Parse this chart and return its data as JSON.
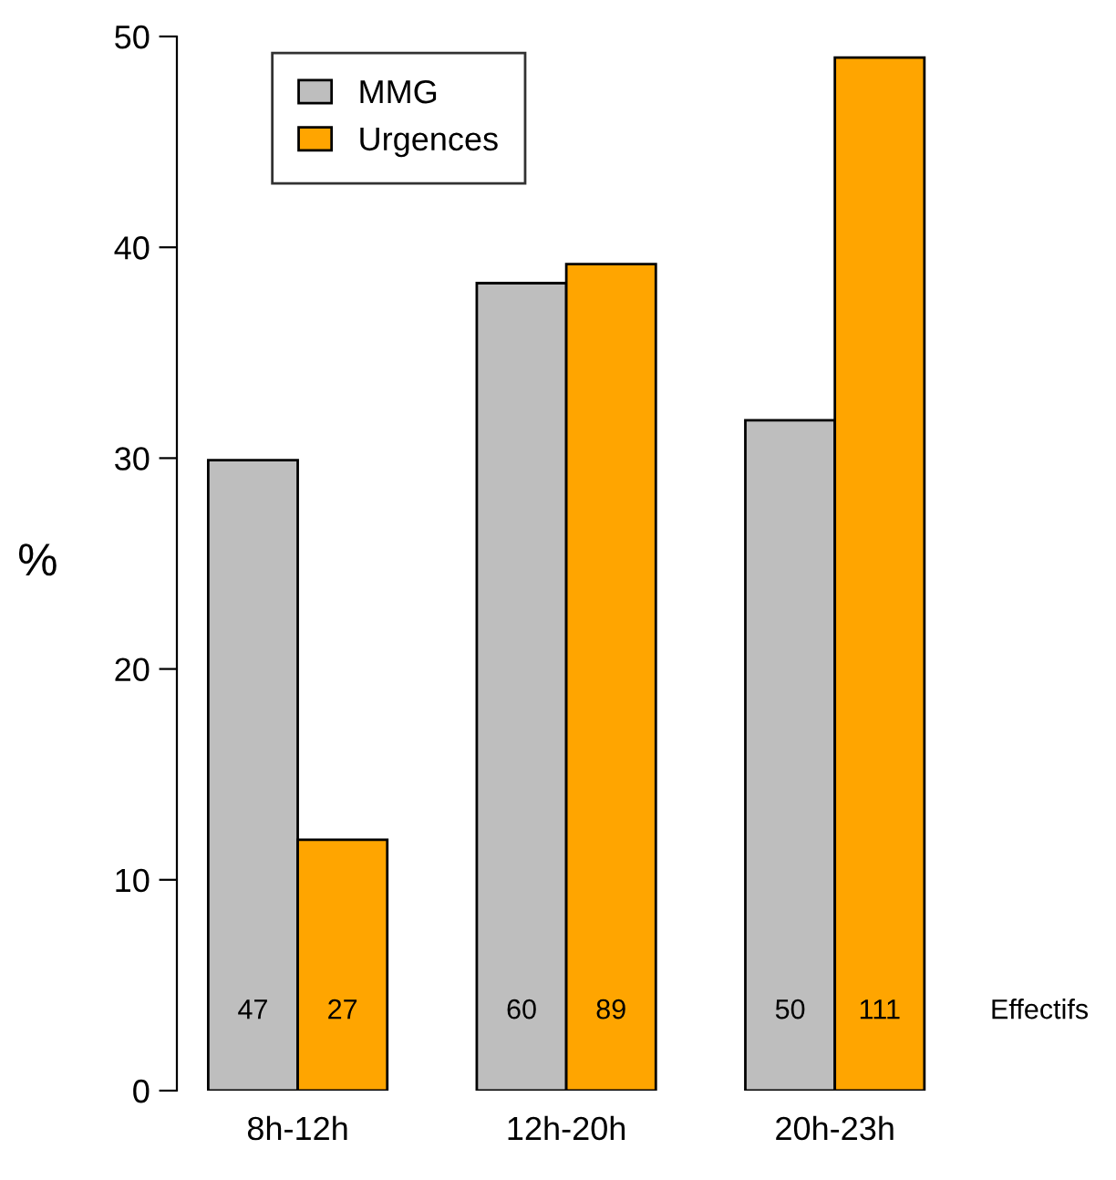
{
  "chart_data": {
    "type": "bar",
    "ylabel": "%",
    "categories": [
      "8h-12h",
      "12h-20h",
      "20h-23h"
    ],
    "series": [
      {
        "name": "MMG",
        "color": "#bebebe",
        "values": [
          29.9,
          38.3,
          31.8
        ]
      },
      {
        "name": "Urgences",
        "color": "#ffa500",
        "values": [
          11.9,
          39.2,
          49.0
        ]
      }
    ],
    "ylim": [
      0,
      50
    ],
    "yticks": [
      0,
      10,
      20,
      30,
      40,
      50
    ],
    "grid": false,
    "legend": "top left",
    "annotations": [
      "47",
      "60",
      "50",
      "27",
      "89",
      "111",
      "Effectifs"
    ]
  }
}
